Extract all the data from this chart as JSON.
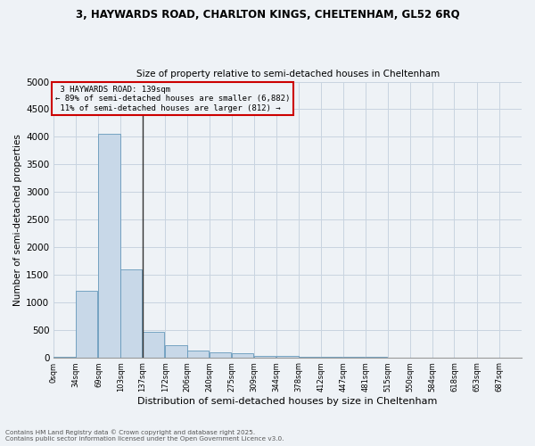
{
  "title_line1": "3, HAYWARDS ROAD, CHARLTON KINGS, CHELTENHAM, GL52 6RQ",
  "title_line2": "Size of property relative to semi-detached houses in Cheltenham",
  "xlabel": "Distribution of semi-detached houses by size in Cheltenham",
  "ylabel": "Number of semi-detached properties",
  "footer1": "Contains HM Land Registry data © Crown copyright and database right 2025.",
  "footer2": "Contains public sector information licensed under the Open Government Licence v3.0.",
  "property_label": "3 HAYWARDS ROAD: 139sqm",
  "pct_smaller": 89,
  "count_smaller": 6882,
  "pct_larger": 11,
  "count_larger": 812,
  "bin_edges": [
    0,
    34,
    69,
    103,
    137,
    172,
    206,
    240,
    275,
    309,
    344,
    378,
    412,
    447,
    481,
    515,
    550,
    584,
    618,
    653,
    687,
    722
  ],
  "bar_heights": [
    10,
    1200,
    4050,
    1600,
    460,
    220,
    130,
    85,
    70,
    30,
    20,
    10,
    5,
    3,
    2,
    1,
    1,
    0,
    0,
    0,
    0
  ],
  "bar_color": "#c8d8e8",
  "bar_edge_color": "#6699bb",
  "vline_x": 137,
  "vline_color": "#333333",
  "ylim": [
    0,
    5000
  ],
  "yticks": [
    0,
    500,
    1000,
    1500,
    2000,
    2500,
    3000,
    3500,
    4000,
    4500,
    5000
  ],
  "annotation_box_color": "#cc0000",
  "grid_color": "#c8d4e0",
  "background_color": "#eef2f6"
}
